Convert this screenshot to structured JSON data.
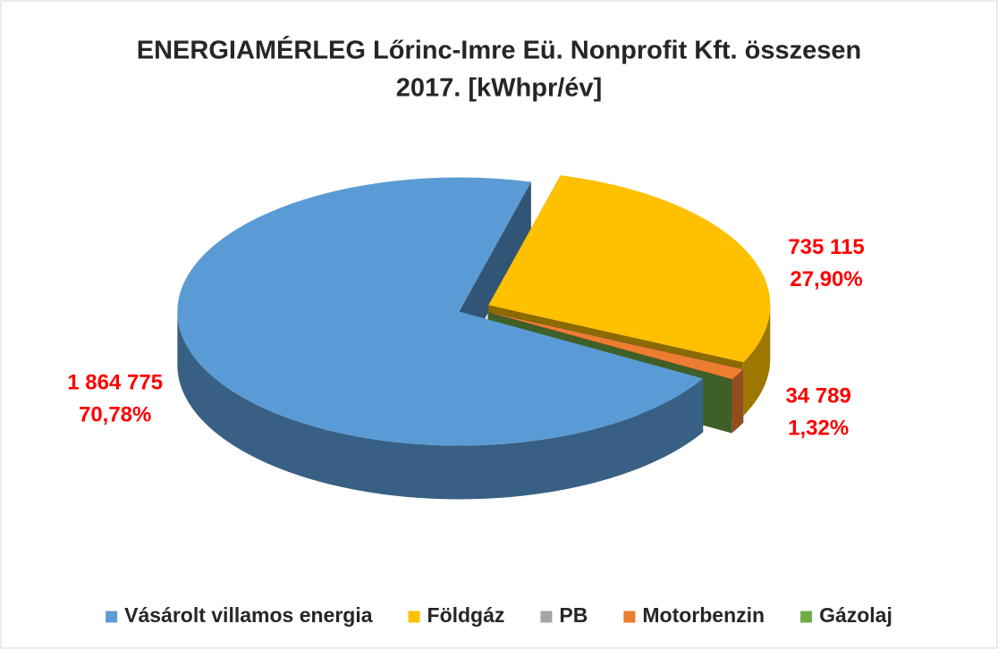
{
  "chart_data": {
    "type": "pie",
    "title": [
      "ENERGIAMÉRLEG Lőrinc-Imre Eü. Nonprofit Kft. összesen",
      "2017. [kWhpr/év]"
    ],
    "categories": [
      "Vásárolt villamos energia",
      "Földgáz",
      "PB",
      "Motorbenzin",
      "Gázolaj"
    ],
    "values": [
      1864775,
      735115,
      0,
      34789,
      0
    ],
    "value_labels": [
      "1 864 775",
      "735 115",
      null,
      "34 789",
      null
    ],
    "percent_labels": [
      "70,78%",
      "27,90%",
      null,
      "1,32%",
      null
    ],
    "colors": [
      "#5b9bd5",
      "#ffc000",
      "#a5a5a5",
      "#ed7d31",
      "#70ad47"
    ],
    "legend": "bottom"
  }
}
